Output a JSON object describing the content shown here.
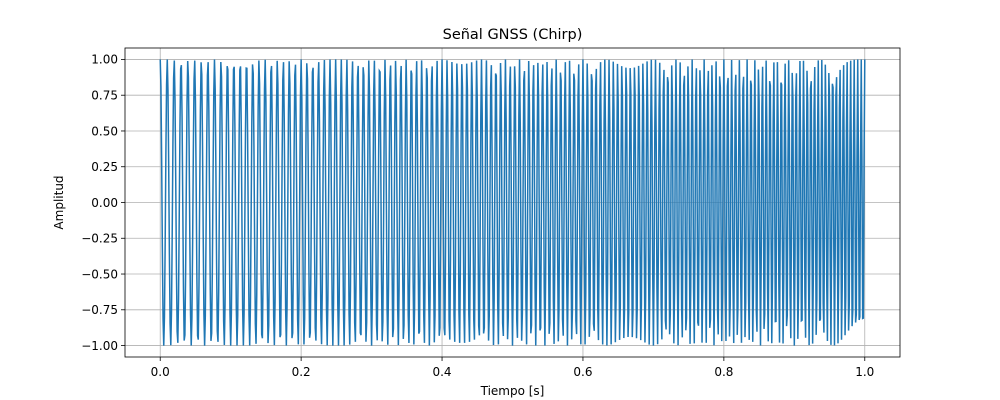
{
  "chart_data": {
    "type": "line",
    "title": "Señal GNSS (Chirp)",
    "xlabel": "Tiempo [s]",
    "ylabel": "Amplitud",
    "xlim": [
      -0.05,
      1.05
    ],
    "ylim": [
      -1.08,
      1.08
    ],
    "xticks": [
      0.0,
      0.2,
      0.4,
      0.6,
      0.8,
      1.0
    ],
    "xtick_labels": [
      "0.0",
      "0.2",
      "0.4",
      "0.6",
      "0.8",
      "1.0"
    ],
    "yticks": [
      -1.0,
      -0.75,
      -0.5,
      -0.25,
      0.0,
      0.25,
      0.5,
      0.75,
      1.0
    ],
    "ytick_labels": [
      "−1.00",
      "−0.75",
      "−0.50",
      "−0.25",
      "0.00",
      "0.25",
      "0.50",
      "0.75",
      "1.00"
    ],
    "grid": true,
    "series": [
      {
        "name": "",
        "color": "#1f77b4",
        "function": "cos",
        "amplitude": 1.0,
        "f0_hz": 100,
        "f1_hz": 200,
        "t_start": 0.0,
        "t_end": 1.0,
        "sample_rate_hz": 1000
      }
    ]
  }
}
